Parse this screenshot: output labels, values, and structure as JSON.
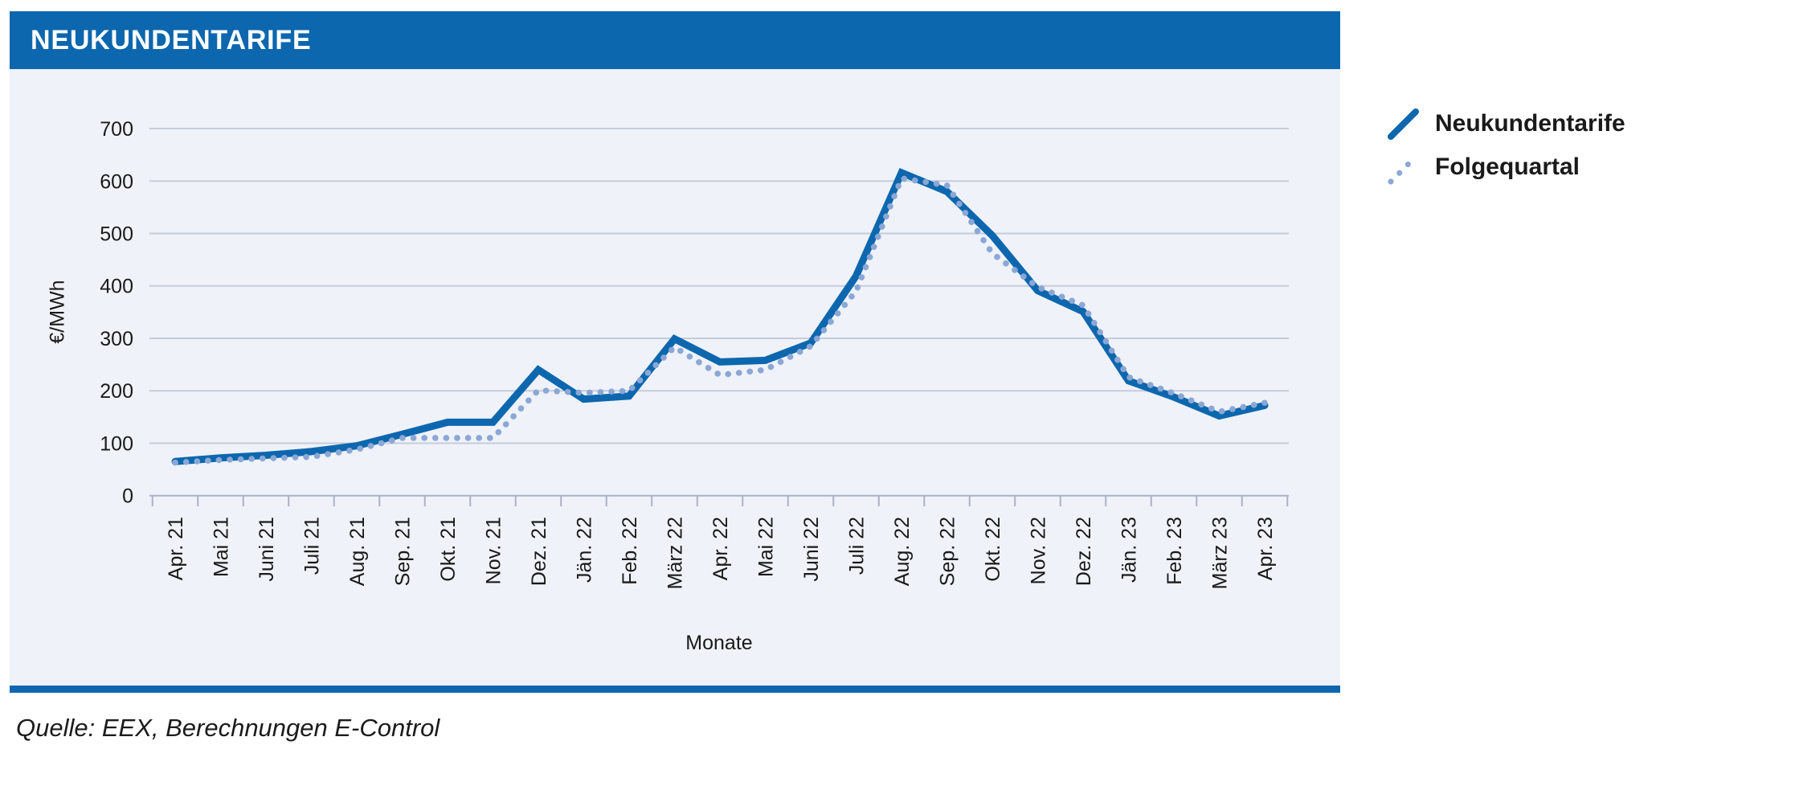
{
  "header": {
    "title": "NEUKUNDENTARIFE"
  },
  "legend": {
    "items": [
      {
        "label": "Neukundentarife",
        "style": "solid",
        "color": "#0d67ae"
      },
      {
        "label": "Folgequartal",
        "style": "dotted",
        "color": "#8ba7d5"
      }
    ]
  },
  "source": {
    "text": "Quelle: EEX, Berechnungen E-Control"
  },
  "colors": {
    "primary_blue": "#0d67ae",
    "dotted_blue": "#8ba7d5",
    "panel_bg": "#eff2f8",
    "gridline": "#c5ccda",
    "axis": "#a9b3c6",
    "text": "#1a1a1a",
    "title_text": "#ffffff"
  },
  "chart_data": {
    "type": "line",
    "title": "NEUKUNDENTARIFE",
    "xlabel": "Monate",
    "ylabel": "€/MWh",
    "ylim": [
      0,
      700
    ],
    "yticks": [
      0,
      100,
      200,
      300,
      400,
      500,
      600,
      700
    ],
    "grid": true,
    "legend_position": "right",
    "categories": [
      "Apr. 21",
      "Mai 21",
      "Juni 21",
      "Juli 21",
      "Aug. 21",
      "Sep. 21",
      "Okt. 21",
      "Nov. 21",
      "Dez. 21",
      "Jän. 22",
      "Feb. 22",
      "März 22",
      "Apr. 22",
      "Mai 22",
      "Juni 22",
      "Juli 22",
      "Aug. 22",
      "Sep. 22",
      "Okt. 22",
      "Nov. 22",
      "Dez. 22",
      "Jän. 23",
      "Feb. 23",
      "März 23",
      "Apr. 23"
    ],
    "series": [
      {
        "name": "Neukundentarife",
        "style": "solid",
        "values": [
          65,
          72,
          77,
          84,
          95,
          117,
          140,
          140,
          240,
          184,
          190,
          299,
          255,
          258,
          291,
          419,
          616,
          580,
          496,
          391,
          351,
          219,
          188,
          152,
          172
        ]
      },
      {
        "name": "Folgequartal",
        "style": "dotted",
        "values": [
          63,
          68,
          71,
          74,
          88,
          110,
          110,
          110,
          201,
          196,
          200,
          283,
          230,
          240,
          285,
          390,
          605,
          592,
          462,
          398,
          363,
          226,
          195,
          160,
          177
        ]
      }
    ]
  }
}
